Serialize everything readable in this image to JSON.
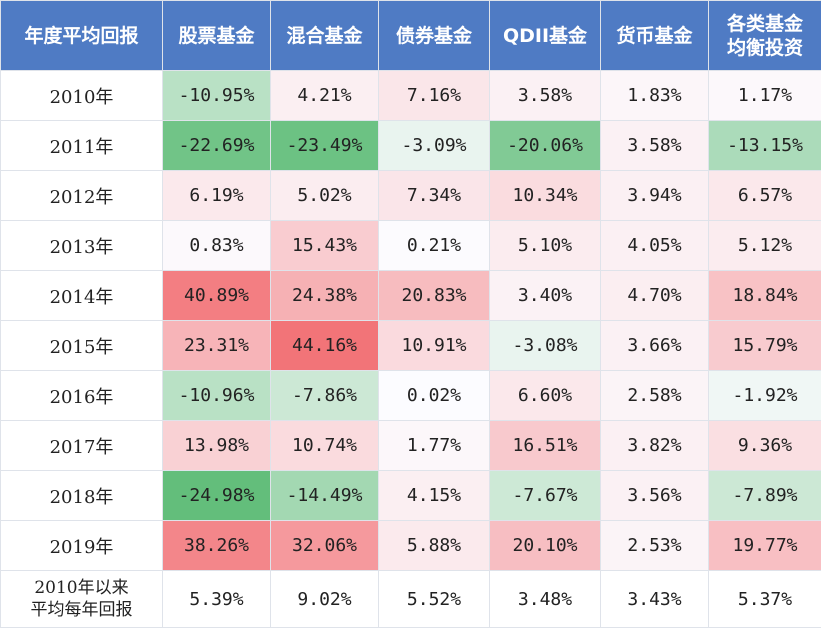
{
  "chart_data": {
    "type": "table",
    "title": "",
    "columns": [
      "年度平均回报",
      "股票基金",
      "混合基金",
      "债券基金",
      "QDII基金",
      "货币基金",
      "各类基金\n均衡投资"
    ],
    "rows": [
      {
        "label": "2010年",
        "values": [
          "-10.95%",
          "4.21%",
          "7.16%",
          "3.58%",
          "1.83%",
          "1.17%"
        ],
        "nums": [
          -10.95,
          4.21,
          7.16,
          3.58,
          1.83,
          1.17
        ]
      },
      {
        "label": "2011年",
        "values": [
          "-22.69%",
          "-23.49%",
          "-3.09%",
          "-20.06%",
          "3.58%",
          "-13.15%"
        ],
        "nums": [
          -22.69,
          -23.49,
          -3.09,
          -20.06,
          3.58,
          -13.15
        ]
      },
      {
        "label": "2012年",
        "values": [
          "6.19%",
          "5.02%",
          "7.34%",
          "10.34%",
          "3.94%",
          "6.57%"
        ],
        "nums": [
          6.19,
          5.02,
          7.34,
          10.34,
          3.94,
          6.57
        ]
      },
      {
        "label": "2013年",
        "values": [
          "0.83%",
          "15.43%",
          "0.21%",
          "5.10%",
          "4.05%",
          "5.12%"
        ],
        "nums": [
          0.83,
          15.43,
          0.21,
          5.1,
          4.05,
          5.12
        ]
      },
      {
        "label": "2014年",
        "values": [
          "40.89%",
          "24.38%",
          "20.83%",
          "3.40%",
          "4.70%",
          "18.84%"
        ],
        "nums": [
          40.89,
          24.38,
          20.83,
          3.4,
          4.7,
          18.84
        ]
      },
      {
        "label": "2015年",
        "values": [
          "23.31%",
          "44.16%",
          "10.91%",
          "-3.08%",
          "3.66%",
          "15.79%"
        ],
        "nums": [
          23.31,
          44.16,
          10.91,
          -3.08,
          3.66,
          15.79
        ]
      },
      {
        "label": "2016年",
        "values": [
          "-10.96%",
          "-7.86%",
          "0.02%",
          "6.60%",
          "2.58%",
          "-1.92%"
        ],
        "nums": [
          -10.96,
          -7.86,
          0.02,
          6.6,
          2.58,
          -1.92
        ]
      },
      {
        "label": "2017年",
        "values": [
          "13.98%",
          "10.74%",
          "1.77%",
          "16.51%",
          "3.82%",
          "9.36%"
        ],
        "nums": [
          13.98,
          10.74,
          1.77,
          16.51,
          3.82,
          9.36
        ]
      },
      {
        "label": "2018年",
        "values": [
          "-24.98%",
          "-14.49%",
          "4.15%",
          "-7.67%",
          "3.56%",
          "-7.89%"
        ],
        "nums": [
          -24.98,
          -14.49,
          4.15,
          -7.67,
          3.56,
          -7.89
        ]
      },
      {
        "label": "2019年",
        "values": [
          "38.26%",
          "32.06%",
          "5.88%",
          "20.10%",
          "2.53%",
          "19.77%"
        ],
        "nums": [
          38.26,
          32.06,
          5.88,
          20.1,
          2.53,
          19.77
        ]
      }
    ],
    "summary": {
      "label": "2010年以来\n平均每年回报",
      "values": [
        "5.39%",
        "9.02%",
        "5.52%",
        "3.48%",
        "3.43%",
        "5.37%"
      ]
    },
    "colors": {
      "header_bg": "#4f7bc4",
      "header_text": "#ffffff",
      "positive_max": "#f27478",
      "negative_max": "#63be7b",
      "neutral": "#fcfcff"
    }
  }
}
